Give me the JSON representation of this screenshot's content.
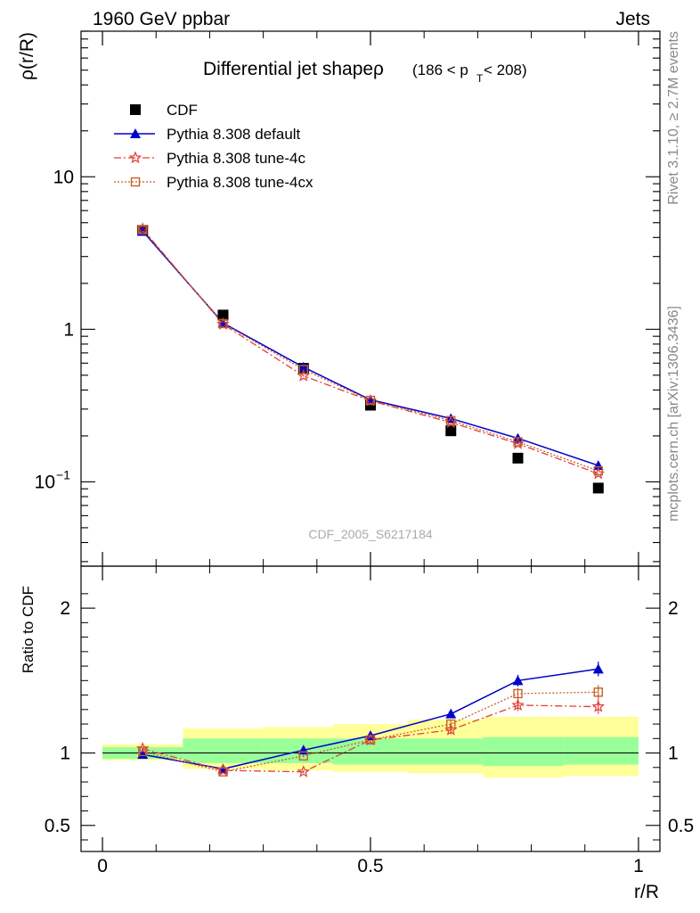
{
  "header": {
    "left": "1960 GeV ppbar",
    "right": "Jets"
  },
  "side_label_top": "Rivet 3.1.10, ≥ 2.7M events",
  "side_label_bottom": "mcplots.cern.ch [arXiv:1306.3436]",
  "watermark": "CDF_2005_S6217184",
  "title_main": "Differential jet shapeρ",
  "title_range": {
    "open": "(186 < p",
    "sub": "T",
    "close": " < 208)"
  },
  "colors": {
    "cdf": "#000000",
    "default": "#0000cc",
    "tune4c": "#e0403a",
    "tune4cx": "#c8602a",
    "band_inner": "#99ff99",
    "band_outer": "#ffff99"
  },
  "chart_data": [
    {
      "type": "line",
      "yscale": "log",
      "ylabel": "ρ(r/R)",
      "xlabel": "",
      "xlim": [
        -0.04,
        1.04
      ],
      "ylim": [
        0.028,
        90
      ],
      "y_tick_labels": [
        {
          "value": 10,
          "label": "10"
        },
        {
          "value": 1,
          "label": "1"
        },
        {
          "value": 0.1,
          "label": "10",
          "sup": "−1"
        }
      ],
      "x": [
        0.075,
        0.225,
        0.375,
        0.5,
        0.65,
        0.775,
        0.925
      ],
      "series": [
        {
          "name": "CDF",
          "key": "cdf",
          "marker": "square",
          "values": [
            4.45,
            1.24,
            0.555,
            0.318,
            0.216,
            0.143,
            0.091
          ]
        },
        {
          "name": "Pythia 8.308 default",
          "key": "default",
          "marker": "triangle",
          "line": "solid",
          "values": [
            4.4,
            1.1,
            0.565,
            0.345,
            0.26,
            0.193,
            0.128
          ]
        },
        {
          "name": "Pythia 8.308 tune-4c",
          "key": "tune4c",
          "marker": "star",
          "line": "dashdot",
          "values": [
            4.55,
            1.08,
            0.495,
            0.34,
            0.245,
            0.178,
            0.113
          ]
        },
        {
          "name": "Pythia 8.308 tune-4cx",
          "key": "tune4cx",
          "marker": "opensquare",
          "line": "dotted",
          "values": [
            4.5,
            1.09,
            0.545,
            0.342,
            0.252,
            0.183,
            0.118
          ]
        }
      ]
    },
    {
      "type": "line",
      "yscale": "linear",
      "ylabel": "Ratio to CDF",
      "xlabel": "r/R",
      "xlim": [
        -0.04,
        1.04
      ],
      "ylim": [
        0.32,
        2.29
      ],
      "y_ticks": [
        0.5,
        1,
        2
      ],
      "y_tick_labels": [
        "0.5",
        "1",
        "2"
      ],
      "x_ticks": [
        0,
        0.5,
        1
      ],
      "x_tick_labels": [
        "0",
        "0.5",
        "1"
      ],
      "x": [
        0.075,
        0.225,
        0.375,
        0.5,
        0.65,
        0.775,
        0.925
      ],
      "bands": {
        "edges": [
          0,
          0.15,
          0.3,
          0.43,
          0.57,
          0.71,
          0.86,
          1.0
        ],
        "inner": [
          [
            0.96,
            1.04
          ],
          [
            0.93,
            1.1
          ],
          [
            0.93,
            1.1
          ],
          [
            0.92,
            1.1
          ],
          [
            0.92,
            1.1
          ],
          [
            0.91,
            1.11
          ],
          [
            0.92,
            1.11
          ]
        ],
        "outer": [
          [
            0.95,
            1.06
          ],
          [
            0.89,
            1.17
          ],
          [
            0.88,
            1.18
          ],
          [
            0.87,
            1.2
          ],
          [
            0.86,
            1.23
          ],
          [
            0.83,
            1.25
          ],
          [
            0.84,
            1.25
          ]
        ]
      },
      "series": [
        {
          "key": "default",
          "marker": "triangle",
          "line": "solid",
          "values": [
            0.99,
            0.89,
            1.02,
            1.12,
            1.27,
            1.5,
            1.58
          ],
          "errors": [
            0.01,
            0.01,
            0.01,
            0.02,
            0.03,
            0.04,
            0.05
          ]
        },
        {
          "key": "tune4c",
          "marker": "star",
          "line": "dashdot",
          "values": [
            1.03,
            0.88,
            0.87,
            1.09,
            1.16,
            1.33,
            1.32
          ],
          "errors": [
            0.01,
            0.01,
            0.01,
            0.02,
            0.03,
            0.04,
            0.05
          ]
        },
        {
          "key": "tune4cx",
          "marker": "opensquare",
          "line": "dotted",
          "values": [
            1.01,
            0.87,
            0.98,
            1.09,
            1.2,
            1.41,
            1.42
          ],
          "errors": [
            0.01,
            0.01,
            0.01,
            0.02,
            0.03,
            0.04,
            0.05
          ]
        }
      ]
    }
  ]
}
